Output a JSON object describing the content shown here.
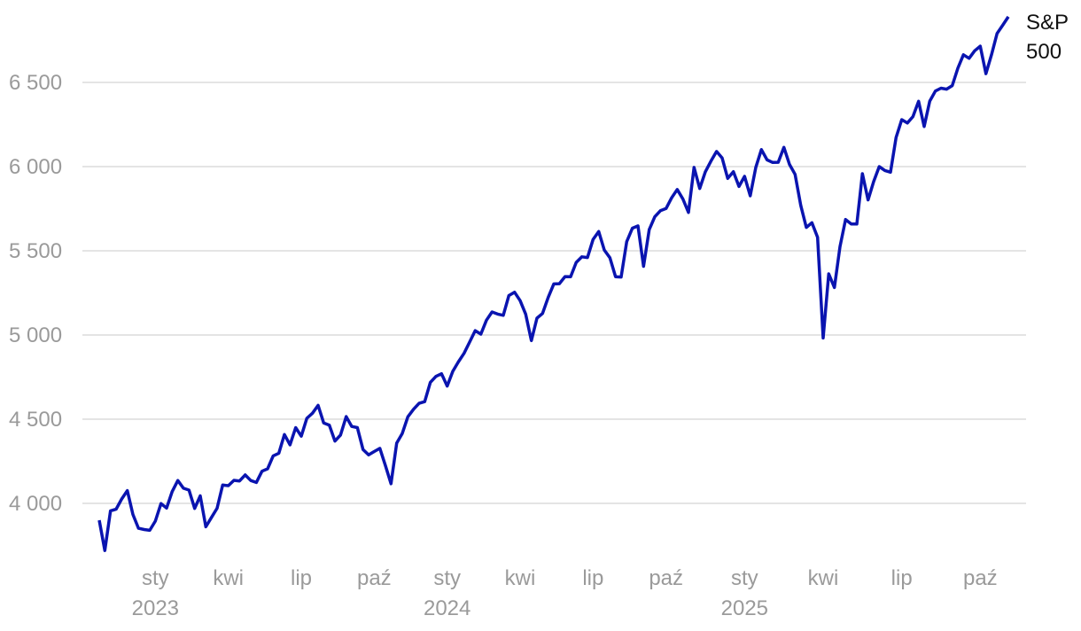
{
  "chart_data": {
    "type": "line",
    "categories": [
      null,
      null,
      null,
      null,
      null,
      null,
      null,
      null,
      null,
      null,
      "sty\n2023",
      null,
      null,
      null,
      null,
      null,
      null,
      null,
      null,
      null,
      null,
      null,
      null,
      "kwi",
      null,
      null,
      null,
      null,
      null,
      null,
      null,
      null,
      null,
      null,
      null,
      null,
      "lip",
      null,
      null,
      null,
      null,
      null,
      null,
      null,
      null,
      null,
      null,
      null,
      null,
      "paź",
      null,
      null,
      null,
      null,
      null,
      null,
      null,
      null,
      null,
      null,
      null,
      null,
      "sty\n2024",
      null,
      null,
      null,
      null,
      null,
      null,
      null,
      null,
      null,
      null,
      null,
      null,
      "kwi",
      null,
      null,
      null,
      null,
      null,
      null,
      null,
      null,
      null,
      null,
      null,
      null,
      "lip",
      null,
      null,
      null,
      null,
      null,
      null,
      null,
      null,
      null,
      null,
      null,
      null,
      "paź",
      null,
      null,
      null,
      null,
      null,
      null,
      null,
      null,
      null,
      null,
      null,
      null,
      null,
      "sty\n2025",
      null,
      null,
      null,
      null,
      null,
      null,
      null,
      null,
      null,
      null,
      null,
      null,
      null,
      "kwi",
      null,
      null,
      null,
      null,
      null,
      null,
      null,
      null,
      null,
      null,
      null,
      null,
      null,
      "lip",
      null,
      null,
      null,
      null,
      null,
      null,
      null,
      null,
      null,
      null,
      null,
      null,
      null,
      "paź",
      null,
      null,
      null,
      null,
      null
    ],
    "series": [
      {
        "name": "S&P 500",
        "color": "#0a14b0",
        "values": [
          3900,
          3720,
          3956,
          3965,
          4026,
          4076,
          3934,
          3852,
          3845,
          3840,
          3895,
          3999,
          3972,
          4070,
          4136,
          4090,
          4079,
          3970,
          4045,
          3861,
          3917,
          3971,
          4109,
          4105,
          4137,
          4133,
          4169,
          4136,
          4124,
          4191,
          4205,
          4282,
          4298,
          4409,
          4348,
          4450,
          4399,
          4505,
          4536,
          4582,
          4478,
          4464,
          4370,
          4406,
          4515,
          4457,
          4450,
          4320,
          4288,
          4308,
          4327,
          4224,
          4117,
          4358,
          4415,
          4514,
          4559,
          4594,
          4604,
          4719,
          4754,
          4770,
          4697,
          4784,
          4840,
          4891,
          4958,
          5026,
          5005,
          5088,
          5137,
          5124,
          5117,
          5234,
          5254,
          5204,
          5123,
          4967,
          5100,
          5128,
          5223,
          5303,
          5305,
          5347,
          5346,
          5431,
          5464,
          5460,
          5567,
          5615,
          5505,
          5459,
          5346,
          5344,
          5554,
          5634,
          5648,
          5408,
          5626,
          5702,
          5738,
          5751,
          5815,
          5864,
          5808,
          5728,
          5995,
          5870,
          5969,
          6032,
          6090,
          6051,
          5930,
          5970,
          5882,
          5942,
          5827,
          5996,
          6101,
          6040,
          6025,
          6026,
          6114,
          6013,
          5954,
          5770,
          5639,
          5667,
          5580,
          4982,
          5363,
          5282,
          5525,
          5686,
          5659,
          5659,
          5958,
          5802,
          5911,
          6000,
          5977,
          5967,
          6173,
          6279,
          6259,
          6297,
          6388,
          6238,
          6389,
          6449,
          6466,
          6460,
          6481,
          6584,
          6664,
          6643,
          6688,
          6715,
          6552,
          6664,
          6791,
          6840,
          6890
        ]
      }
    ],
    "ylim": [
      3700,
      6900
    ],
    "yticks": [
      {
        "value": 4000,
        "label": "4 000"
      },
      {
        "value": 4500,
        "label": "4 500"
      },
      {
        "value": 5000,
        "label": "5 000"
      },
      {
        "value": 5500,
        "label": "5 500"
      },
      {
        "value": 6000,
        "label": "6 000"
      },
      {
        "value": 6500,
        "label": "6 500"
      }
    ],
    "grid": true
  }
}
